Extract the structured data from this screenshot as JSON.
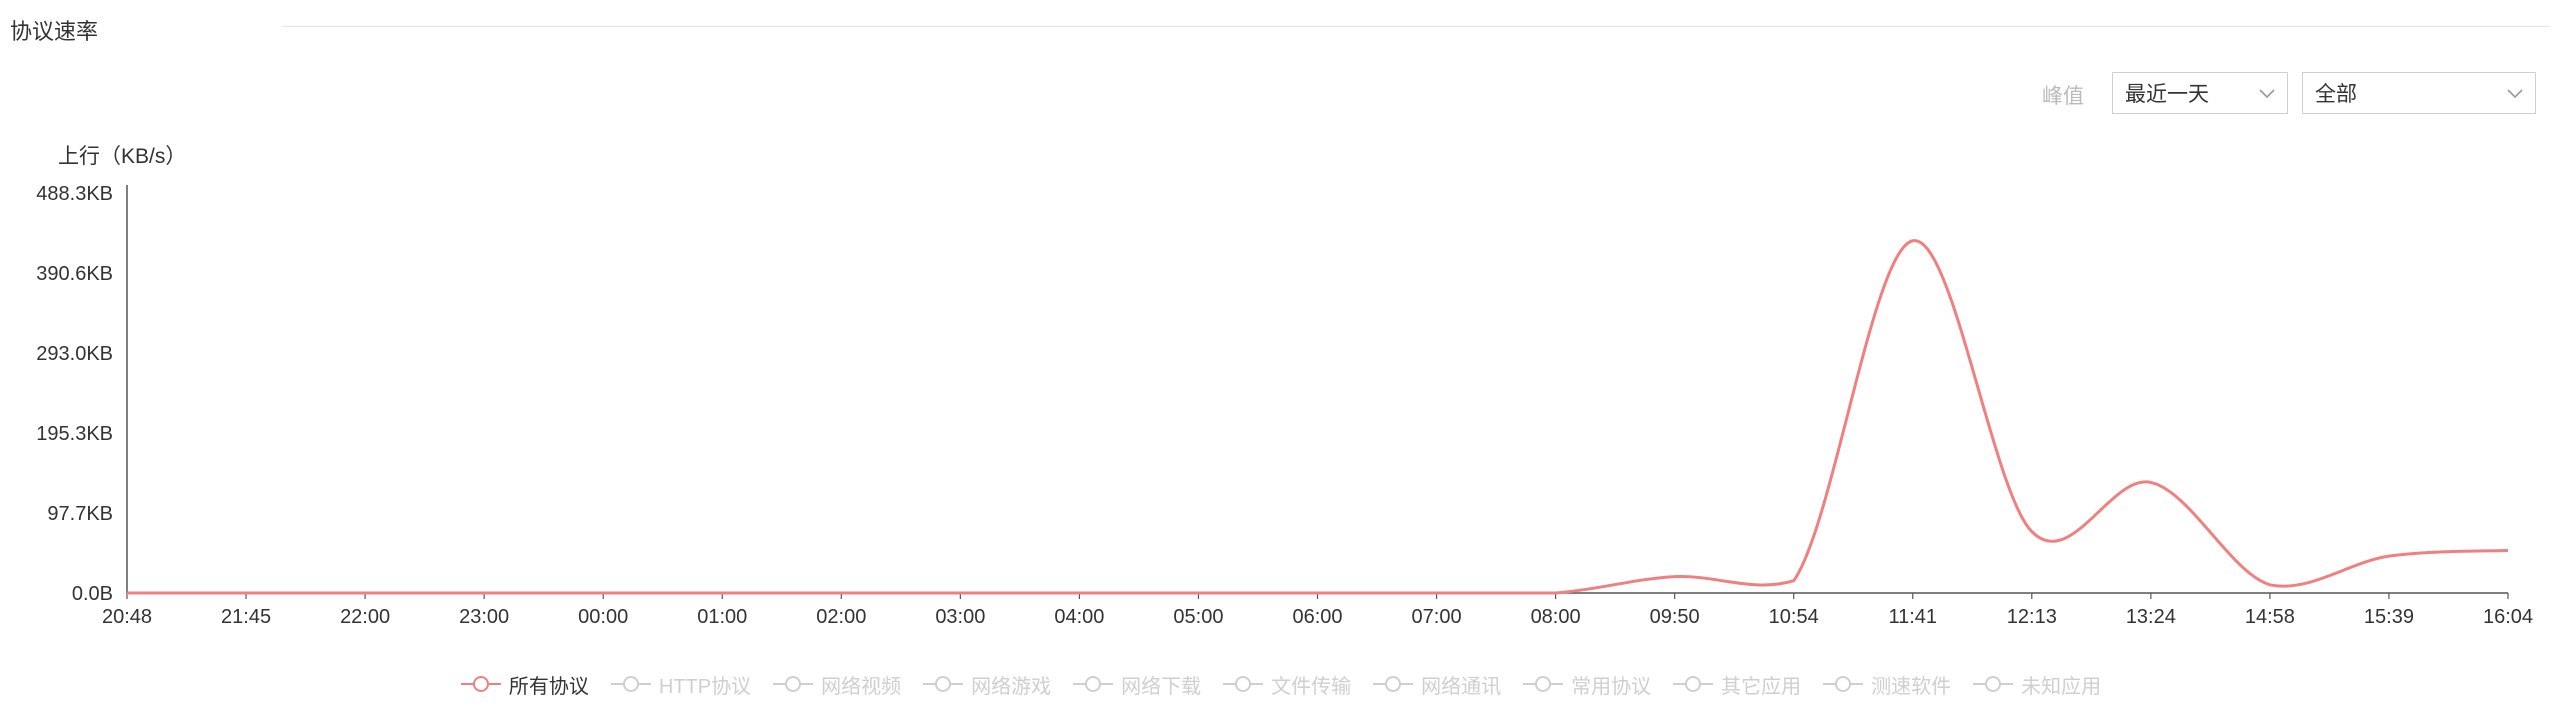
{
  "section_title": "协议速率",
  "controls": {
    "peak_label": "峰值",
    "time_range_select": {
      "value": "最近一天"
    },
    "protocol_select": {
      "value": "全部"
    }
  },
  "chart_data": {
    "type": "line",
    "title": "",
    "ylabel": "上行（KB/s）",
    "xlabel": "",
    "yticks": [
      "0.0B",
      "97.7KB",
      "195.3KB",
      "293.0KB",
      "390.6KB",
      "488.3KB"
    ],
    "ylim": [
      0,
      488.3
    ],
    "categories": [
      "20:48",
      "21:45",
      "22:00",
      "23:00",
      "00:00",
      "01:00",
      "02:00",
      "03:00",
      "04:00",
      "05:00",
      "06:00",
      "07:00",
      "08:00",
      "09:50",
      "10:54",
      "11:41",
      "12:13",
      "13:24",
      "14:58",
      "15:39",
      "16:04"
    ],
    "series": [
      {
        "name": "所有协议",
        "color": "#f08080",
        "values": [
          0,
          0,
          0,
          0,
          0,
          0,
          0,
          0,
          0,
          0,
          0,
          0,
          0,
          20,
          15,
          430,
          75,
          135,
          10,
          45,
          52
        ]
      }
    ],
    "grid": false,
    "legend_position": "bottom-center"
  },
  "legend": {
    "items": [
      {
        "label": "所有协议",
        "active": true
      },
      {
        "label": "HTTP协议",
        "active": false
      },
      {
        "label": "网络视频",
        "active": false
      },
      {
        "label": "网络游戏",
        "active": false
      },
      {
        "label": "网络下载",
        "active": false
      },
      {
        "label": "文件传输",
        "active": false
      },
      {
        "label": "网络通讯",
        "active": false
      },
      {
        "label": "常用协议",
        "active": false
      },
      {
        "label": "其它应用",
        "active": false
      },
      {
        "label": "测速软件",
        "active": false
      },
      {
        "label": "未知应用",
        "active": false
      }
    ]
  }
}
